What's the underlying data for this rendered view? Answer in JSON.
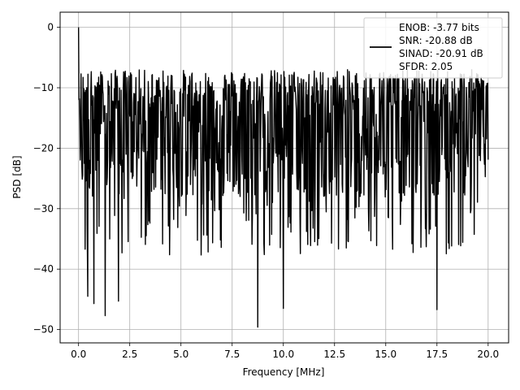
{
  "chart_data": {
    "type": "line",
    "title": "",
    "xlabel": "Frequency [MHz]",
    "ylabel": "PSD [dB]",
    "xlim": [
      -0.9,
      21.0
    ],
    "ylim": [
      -52.2,
      2.5
    ],
    "xticks": [
      0.0,
      2.5,
      5.0,
      7.5,
      10.0,
      12.5,
      15.0,
      17.5,
      20.0
    ],
    "xtick_labels": [
      "0.0",
      "2.5",
      "5.0",
      "7.5",
      "10.0",
      "12.5",
      "15.0",
      "17.5",
      "20.0"
    ],
    "yticks": [
      0,
      -10,
      -20,
      -30,
      -40,
      -50
    ],
    "ytick_labels": [
      "0",
      "−10",
      "−20",
      "−30",
      "−40",
      "−50"
    ],
    "grid": true,
    "legend_position": "top-right",
    "line_color": "#000000",
    "legend_lines": [
      "ENOB: -3.77 bits",
      "SNR: -20.88 dB",
      "SINAD: -20.91 dB",
      "SFDR: 2.05"
    ],
    "series": [
      {
        "x_range": [
          0.0,
          20.0
        ],
        "points": 1000,
        "peak": {
          "x": 0.0,
          "y": 0.0
        },
        "noise_band_db": [
          -28,
          -13
        ],
        "notable_dips": [
          {
            "x": 0.45,
            "y": -44.5
          },
          {
            "x": 0.75,
            "y": -45.7
          },
          {
            "x": 1.3,
            "y": -47.7
          },
          {
            "x": 1.95,
            "y": -45.3
          },
          {
            "x": 8.75,
            "y": -49.6
          },
          {
            "x": 10.0,
            "y": -46.5
          },
          {
            "x": 17.5,
            "y": -46.7
          }
        ]
      }
    ]
  }
}
